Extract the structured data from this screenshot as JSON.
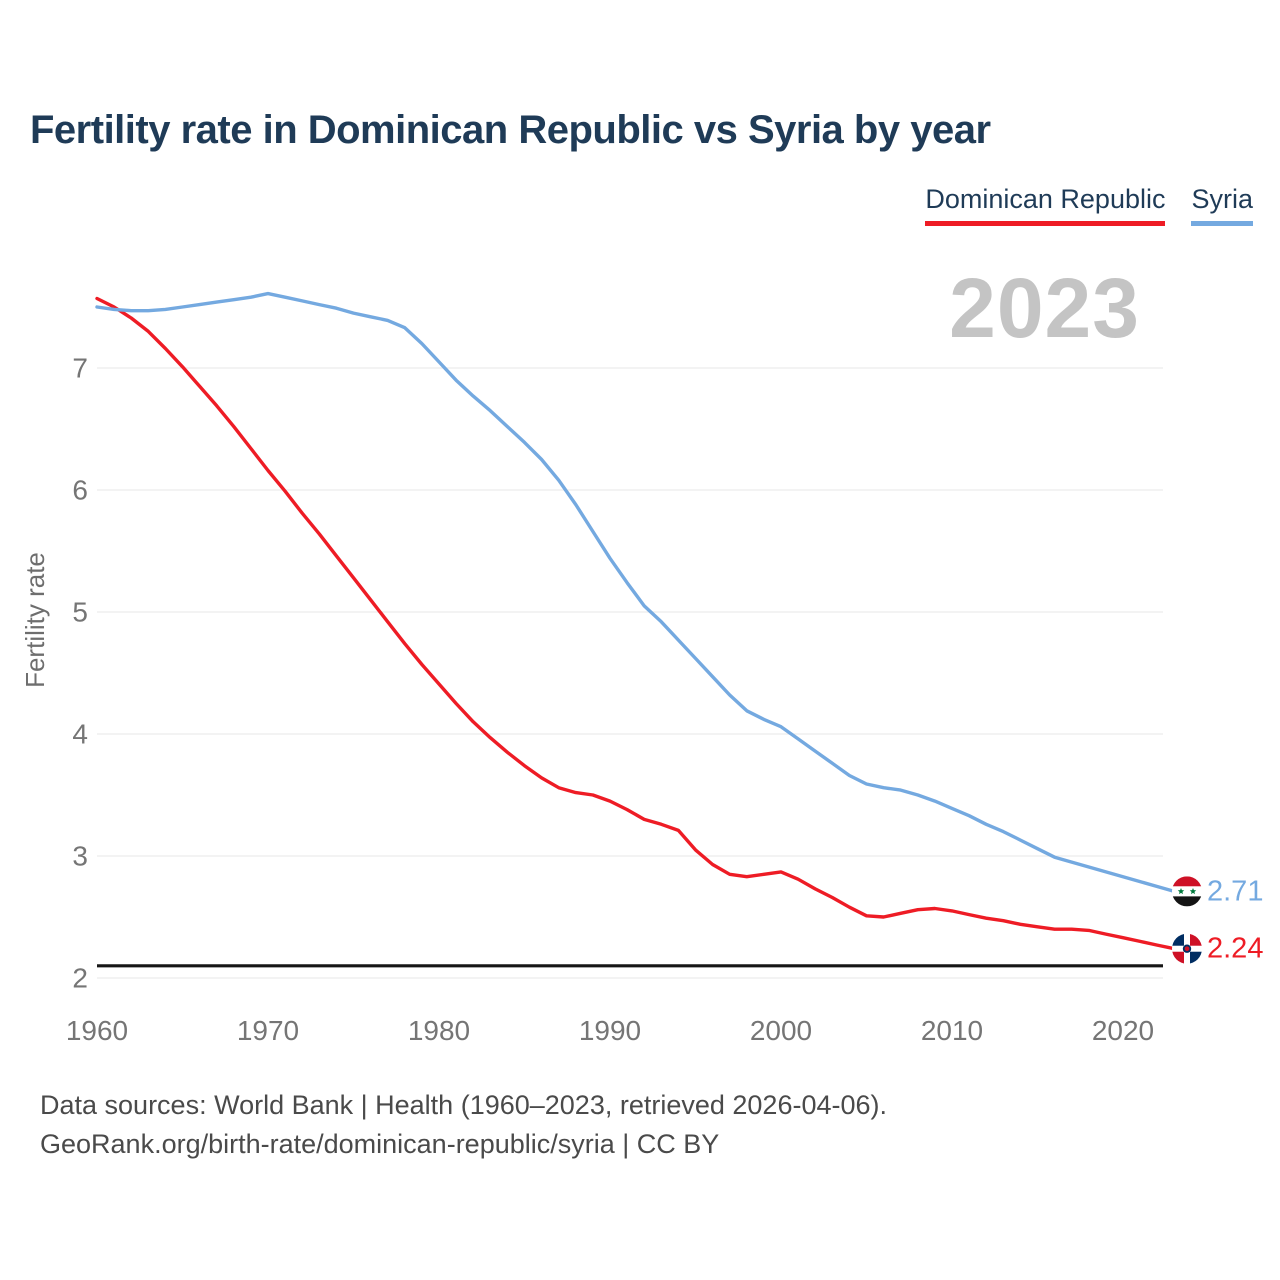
{
  "header": {
    "title": "Fertility rate in Dominican Republic vs Syria by year",
    "watermark": "2023"
  },
  "legend": {
    "items": [
      {
        "label": "Dominican Republic",
        "color": "#ee1c25"
      },
      {
        "label": "Syria",
        "color": "#74a9e0"
      }
    ]
  },
  "footer": {
    "line1": "Data sources: World Bank | Health (1960–2023, retrieved 2026-04-06).",
    "line2": "GeoRank.org/birth-rate/dominican-republic/syria | CC BY"
  },
  "chart_data": {
    "type": "line",
    "title": "Fertility rate in Dominican Republic vs Syria by year",
    "xlabel": "",
    "ylabel": "Fertility rate",
    "xlim": [
      1960,
      2023
    ],
    "ylim": [
      2,
      7.75
    ],
    "x_ticks": [
      1960,
      1970,
      1980,
      1990,
      2000,
      2010,
      2020
    ],
    "y_ticks": [
      2,
      3,
      4,
      5,
      6,
      7
    ],
    "grid": "horizontal",
    "legend_position": "top-right",
    "reference_line": {
      "value": 2.1,
      "color": "#161616",
      "meaning": "replacement-level"
    },
    "years": [
      1960,
      1961,
      1962,
      1963,
      1964,
      1965,
      1966,
      1967,
      1968,
      1969,
      1970,
      1971,
      1972,
      1973,
      1974,
      1975,
      1976,
      1977,
      1978,
      1979,
      1980,
      1981,
      1982,
      1983,
      1984,
      1985,
      1986,
      1987,
      1988,
      1989,
      1990,
      1991,
      1992,
      1993,
      1994,
      1995,
      1996,
      1997,
      1998,
      1999,
      2000,
      2001,
      2002,
      2003,
      2004,
      2005,
      2006,
      2007,
      2008,
      2009,
      2010,
      2011,
      2012,
      2013,
      2014,
      2015,
      2016,
      2017,
      2018,
      2019,
      2020,
      2021,
      2022,
      2023
    ],
    "series": [
      {
        "name": "Dominican Republic",
        "color": "#ee1c25",
        "end_label": "2.24",
        "end_value": 2.24,
        "flag_icon": "dominican-republic-flag-icon",
        "values": [
          7.57,
          7.5,
          7.41,
          7.3,
          7.16,
          7.01,
          6.85,
          6.69,
          6.52,
          6.34,
          6.16,
          5.99,
          5.81,
          5.64,
          5.46,
          5.28,
          5.1,
          4.92,
          4.74,
          4.57,
          4.41,
          4.25,
          4.1,
          3.97,
          3.85,
          3.74,
          3.64,
          3.56,
          3.52,
          3.5,
          3.45,
          3.38,
          3.3,
          3.26,
          3.21,
          3.05,
          2.93,
          2.85,
          2.83,
          2.85,
          2.87,
          2.81,
          2.73,
          2.66,
          2.58,
          2.51,
          2.5,
          2.53,
          2.56,
          2.57,
          2.55,
          2.52,
          2.49,
          2.47,
          2.44,
          2.42,
          2.4,
          2.4,
          2.39,
          2.36,
          2.33,
          2.3,
          2.27,
          2.24
        ]
      },
      {
        "name": "Syria",
        "color": "#74a9e0",
        "end_label": "2.71",
        "end_value": 2.71,
        "flag_icon": "syria-flag-icon",
        "values": [
          7.5,
          7.48,
          7.47,
          7.47,
          7.48,
          7.5,
          7.52,
          7.54,
          7.56,
          7.58,
          7.61,
          7.58,
          7.55,
          7.52,
          7.49,
          7.45,
          7.42,
          7.39,
          7.33,
          7.2,
          7.05,
          6.9,
          6.77,
          6.65,
          6.52,
          6.39,
          6.25,
          6.08,
          5.88,
          5.66,
          5.44,
          5.24,
          5.05,
          4.92,
          4.77,
          4.62,
          4.47,
          4.32,
          4.19,
          4.12,
          4.06,
          3.96,
          3.86,
          3.76,
          3.66,
          3.59,
          3.56,
          3.54,
          3.5,
          3.45,
          3.39,
          3.33,
          3.26,
          3.2,
          3.13,
          3.06,
          2.99,
          2.95,
          2.91,
          2.87,
          2.83,
          2.79,
          2.75,
          2.71
        ]
      }
    ]
  }
}
